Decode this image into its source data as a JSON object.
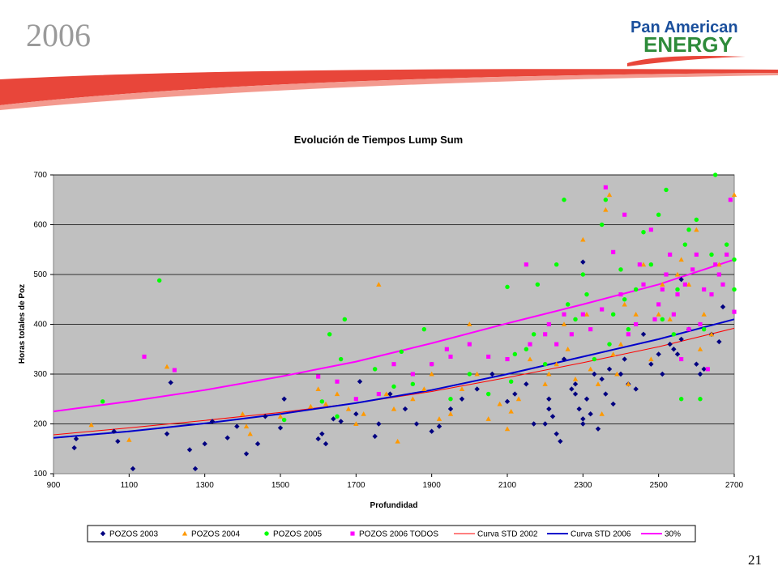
{
  "slide": {
    "year": "2006",
    "page_number": "21",
    "logo": {
      "line1": "Pan American",
      "line2": "ENERGY"
    },
    "colors": {
      "swoosh": "#e8463a",
      "logo_blue": "#1a4f9c",
      "logo_green": "#2e8b3a"
    }
  },
  "chart_data": {
    "type": "scatter",
    "title": "Evolución de Tiempos Lump Sum",
    "xlabel": "Profundidad",
    "ylabel": "Horas totales de Poz",
    "xlim": [
      900,
      2700
    ],
    "ylim": [
      100,
      700
    ],
    "xticks": [
      900,
      1100,
      1300,
      1500,
      1700,
      1900,
      2100,
      2300,
      2500,
      2700
    ],
    "yticks": [
      100,
      200,
      300,
      400,
      500,
      600,
      700
    ],
    "grid": "horizontal",
    "plot_background": "#c0c0c0",
    "legend": "bottom",
    "series": [
      {
        "name": "POZOS 2003",
        "marker": "diamond",
        "color": "#000080",
        "points": [
          [
            955,
            152
          ],
          [
            960,
            170
          ],
          [
            1060,
            185
          ],
          [
            1070,
            165
          ],
          [
            1110,
            110
          ],
          [
            1200,
            180
          ],
          [
            1210,
            283
          ],
          [
            1260,
            148
          ],
          [
            1275,
            110
          ],
          [
            1300,
            160
          ],
          [
            1320,
            205
          ],
          [
            1360,
            172
          ],
          [
            1385,
            195
          ],
          [
            1410,
            140
          ],
          [
            1440,
            160
          ],
          [
            1460,
            215
          ],
          [
            1500,
            192
          ],
          [
            1510,
            250
          ],
          [
            1600,
            170
          ],
          [
            1610,
            180
          ],
          [
            1620,
            160
          ],
          [
            1640,
            210
          ],
          [
            1660,
            205
          ],
          [
            1700,
            220
          ],
          [
            1710,
            285
          ],
          [
            1750,
            175
          ],
          [
            1760,
            200
          ],
          [
            1790,
            260
          ],
          [
            1830,
            230
          ],
          [
            1860,
            200
          ],
          [
            1900,
            185
          ],
          [
            1920,
            195
          ],
          [
            1950,
            230
          ],
          [
            1980,
            250
          ],
          [
            2020,
            270
          ],
          [
            2060,
            300
          ],
          [
            2100,
            245
          ],
          [
            2120,
            260
          ],
          [
            2150,
            280
          ],
          [
            2170,
            200
          ],
          [
            2200,
            200
          ],
          [
            2210,
            250
          ],
          [
            2220,
            215
          ],
          [
            2230,
            180
          ],
          [
            2240,
            165
          ],
          [
            2250,
            330
          ],
          [
            2270,
            270
          ],
          [
            2280,
            280
          ],
          [
            2290,
            230
          ],
          [
            2300,
            200
          ],
          [
            2300,
            210
          ],
          [
            2310,
            250
          ],
          [
            2320,
            220
          ],
          [
            2330,
            300
          ],
          [
            2340,
            190
          ],
          [
            2350,
            290
          ],
          [
            2360,
            260
          ],
          [
            2370,
            310
          ],
          [
            2380,
            240
          ],
          [
            2400,
            300
          ],
          [
            2410,
            330
          ],
          [
            2420,
            280
          ],
          [
            2440,
            270
          ],
          [
            2460,
            380
          ],
          [
            2480,
            320
          ],
          [
            2500,
            340
          ],
          [
            2510,
            300
          ],
          [
            2530,
            360
          ],
          [
            2540,
            350
          ],
          [
            2550,
            340
          ],
          [
            2560,
            370
          ],
          [
            2580,
            390
          ],
          [
            2600,
            320
          ],
          [
            2610,
            300
          ],
          [
            2620,
            310
          ],
          [
            2640,
            380
          ],
          [
            2660,
            365
          ],
          [
            2670,
            435
          ],
          [
            2300,
            525
          ],
          [
            2560,
            490
          ],
          [
            2210,
            230
          ],
          [
            2280,
            260
          ]
        ]
      },
      {
        "name": "POZOS 2004",
        "marker": "triangle",
        "color": "#ff9900",
        "points": [
          [
            1000,
            198
          ],
          [
            1100,
            168
          ],
          [
            1200,
            315
          ],
          [
            1400,
            220
          ],
          [
            1410,
            195
          ],
          [
            1420,
            180
          ],
          [
            1500,
            215
          ],
          [
            1580,
            235
          ],
          [
            1600,
            270
          ],
          [
            1620,
            240
          ],
          [
            1650,
            260
          ],
          [
            1680,
            230
          ],
          [
            1700,
            200
          ],
          [
            1720,
            220
          ],
          [
            1760,
            480
          ],
          [
            1780,
            260
          ],
          [
            1800,
            230
          ],
          [
            1810,
            165
          ],
          [
            1850,
            250
          ],
          [
            1880,
            270
          ],
          [
            1900,
            300
          ],
          [
            1920,
            210
          ],
          [
            1950,
            220
          ],
          [
            1980,
            270
          ],
          [
            2000,
            400
          ],
          [
            2020,
            300
          ],
          [
            2050,
            210
          ],
          [
            2080,
            240
          ],
          [
            2100,
            190
          ],
          [
            2110,
            225
          ],
          [
            2130,
            250
          ],
          [
            2160,
            330
          ],
          [
            2200,
            280
          ],
          [
            2210,
            300
          ],
          [
            2230,
            320
          ],
          [
            2250,
            400
          ],
          [
            2260,
            350
          ],
          [
            2280,
            290
          ],
          [
            2300,
            570
          ],
          [
            2310,
            420
          ],
          [
            2320,
            310
          ],
          [
            2340,
            280
          ],
          [
            2350,
            220
          ],
          [
            2360,
            630
          ],
          [
            2370,
            660
          ],
          [
            2380,
            340
          ],
          [
            2390,
            300
          ],
          [
            2400,
            360
          ],
          [
            2410,
            440
          ],
          [
            2420,
            280
          ],
          [
            2440,
            420
          ],
          [
            2460,
            520
          ],
          [
            2480,
            330
          ],
          [
            2500,
            420
          ],
          [
            2510,
            480
          ],
          [
            2530,
            410
          ],
          [
            2550,
            500
          ],
          [
            2560,
            530
          ],
          [
            2580,
            480
          ],
          [
            2600,
            590
          ],
          [
            2610,
            350
          ],
          [
            2620,
            420
          ],
          [
            2640,
            380
          ],
          [
            2660,
            520
          ],
          [
            2700,
            660
          ]
        ]
      },
      {
        "name": "POZOS 2005",
        "marker": "circle",
        "color": "#00ff00",
        "points": [
          [
            1030,
            245
          ],
          [
            1180,
            488
          ],
          [
            1510,
            208
          ],
          [
            1610,
            245
          ],
          [
            1630,
            380
          ],
          [
            1650,
            215
          ],
          [
            1660,
            330
          ],
          [
            1670,
            410
          ],
          [
            1750,
            310
          ],
          [
            1800,
            275
          ],
          [
            1820,
            345
          ],
          [
            1850,
            280
          ],
          [
            1880,
            390
          ],
          [
            1900,
            320
          ],
          [
            1950,
            250
          ],
          [
            2000,
            300
          ],
          [
            2050,
            260
          ],
          [
            2100,
            475
          ],
          [
            2110,
            285
          ],
          [
            2120,
            340
          ],
          [
            2150,
            350
          ],
          [
            2170,
            380
          ],
          [
            2180,
            480
          ],
          [
            2200,
            320
          ],
          [
            2230,
            520
          ],
          [
            2250,
            650
          ],
          [
            2260,
            440
          ],
          [
            2280,
            410
          ],
          [
            2300,
            500
          ],
          [
            2310,
            460
          ],
          [
            2330,
            330
          ],
          [
            2350,
            600
          ],
          [
            2360,
            650
          ],
          [
            2370,
            360
          ],
          [
            2380,
            420
          ],
          [
            2400,
            510
          ],
          [
            2410,
            450
          ],
          [
            2420,
            390
          ],
          [
            2440,
            470
          ],
          [
            2460,
            585
          ],
          [
            2480,
            520
          ],
          [
            2500,
            620
          ],
          [
            2510,
            410
          ],
          [
            2520,
            670
          ],
          [
            2540,
            380
          ],
          [
            2550,
            470
          ],
          [
            2560,
            250
          ],
          [
            2570,
            560
          ],
          [
            2580,
            590
          ],
          [
            2600,
            610
          ],
          [
            2610,
            250
          ],
          [
            2620,
            390
          ],
          [
            2640,
            540
          ],
          [
            2650,
            700
          ],
          [
            2680,
            560
          ],
          [
            2700,
            470
          ],
          [
            2700,
            530
          ]
        ]
      },
      {
        "name": "POZOS 2006 TODOS",
        "marker": "square",
        "color": "#ff00ff",
        "points": [
          [
            1140,
            335
          ],
          [
            1220,
            308
          ],
          [
            1600,
            295
          ],
          [
            1650,
            285
          ],
          [
            1700,
            250
          ],
          [
            1760,
            260
          ],
          [
            1800,
            320
          ],
          [
            1850,
            300
          ],
          [
            1900,
            320
          ],
          [
            1940,
            350
          ],
          [
            1950,
            335
          ],
          [
            2000,
            360
          ],
          [
            2050,
            335
          ],
          [
            2100,
            330
          ],
          [
            2150,
            520
          ],
          [
            2160,
            360
          ],
          [
            2200,
            380
          ],
          [
            2210,
            400
          ],
          [
            2230,
            360
          ],
          [
            2250,
            420
          ],
          [
            2270,
            380
          ],
          [
            2300,
            420
          ],
          [
            2320,
            390
          ],
          [
            2350,
            430
          ],
          [
            2360,
            675
          ],
          [
            2380,
            545
          ],
          [
            2400,
            460
          ],
          [
            2410,
            620
          ],
          [
            2420,
            380
          ],
          [
            2440,
            400
          ],
          [
            2450,
            520
          ],
          [
            2460,
            480
          ],
          [
            2480,
            590
          ],
          [
            2490,
            410
          ],
          [
            2500,
            440
          ],
          [
            2510,
            470
          ],
          [
            2520,
            500
          ],
          [
            2530,
            540
          ],
          [
            2540,
            420
          ],
          [
            2550,
            460
          ],
          [
            2560,
            330
          ],
          [
            2570,
            480
          ],
          [
            2580,
            390
          ],
          [
            2590,
            510
          ],
          [
            2600,
            540
          ],
          [
            2610,
            400
          ],
          [
            2620,
            470
          ],
          [
            2630,
            310
          ],
          [
            2640,
            460
          ],
          [
            2650,
            520
          ],
          [
            2660,
            500
          ],
          [
            2670,
            480
          ],
          [
            2680,
            540
          ],
          [
            2690,
            650
          ],
          [
            2700,
            425
          ]
        ]
      }
    ],
    "curves": [
      {
        "name": "Curva STD 2002",
        "color": "#ff0000",
        "width": 1,
        "points": [
          [
            900,
            178
          ],
          [
            1100,
            192
          ],
          [
            1300,
            207
          ],
          [
            1500,
            223
          ],
          [
            1700,
            242
          ],
          [
            1900,
            265
          ],
          [
            2100,
            293
          ],
          [
            2300,
            323
          ],
          [
            2500,
            355
          ],
          [
            2700,
            392
          ]
        ]
      },
      {
        "name": "Curva STD 2006",
        "color": "#0000cc",
        "width": 2,
        "points": [
          [
            900,
            172
          ],
          [
            1100,
            185
          ],
          [
            1300,
            201
          ],
          [
            1500,
            220
          ],
          [
            1700,
            242
          ],
          [
            1900,
            268
          ],
          [
            2100,
            300
          ],
          [
            2300,
            335
          ],
          [
            2500,
            370
          ],
          [
            2700,
            410
          ]
        ]
      },
      {
        "name": "30%",
        "color": "#ff00ff",
        "width": 2,
        "points": [
          [
            900,
            225
          ],
          [
            1100,
            245
          ],
          [
            1300,
            268
          ],
          [
            1500,
            295
          ],
          [
            1700,
            325
          ],
          [
            1900,
            362
          ],
          [
            2100,
            402
          ],
          [
            2300,
            440
          ],
          [
            2500,
            480
          ],
          [
            2700,
            530
          ]
        ]
      }
    ]
  }
}
